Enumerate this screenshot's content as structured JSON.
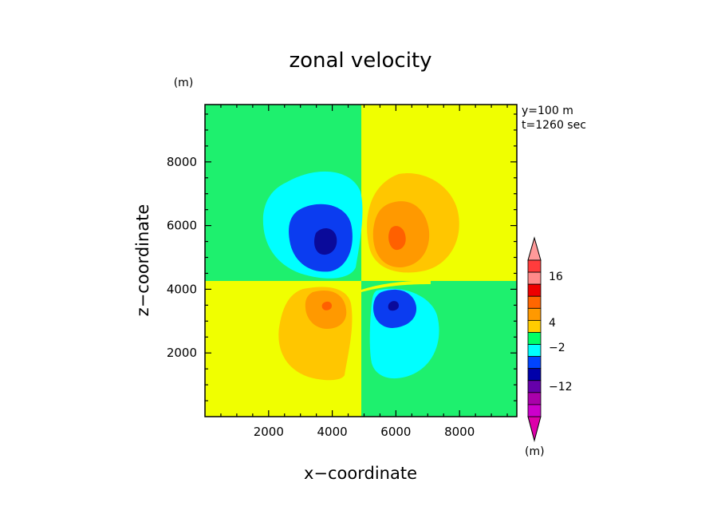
{
  "chart_data": {
    "type": "heatmap",
    "title": "zonal velocity",
    "xlabel": "x−coordinate",
    "ylabel": "z−coordinate",
    "x_unit": "(m)",
    "y_unit": "(m)",
    "xlim": [
      0,
      9800
    ],
    "ylim": [
      0,
      9800
    ],
    "x_ticks": [
      "2000",
      "4000",
      "6000",
      "8000"
    ],
    "x_tick_values": [
      2000,
      4000,
      6000,
      8000
    ],
    "y_ticks": [
      "2000",
      "4000",
      "6000",
      "8000"
    ],
    "y_tick_values": [
      2000,
      4000,
      6000,
      8000
    ],
    "annotations": [
      "y=100 m",
      "t=1260 sec"
    ],
    "background": [
      {
        "region": "upper-left",
        "x": [
          0,
          4900
        ],
        "z": [
          4400,
          9800
        ],
        "level": "-2 to 0",
        "color": "#1ef06e"
      },
      {
        "region": "upper-right",
        "x": [
          4900,
          9800
        ],
        "z": [
          4400,
          9800
        ],
        "level": "0 to 4",
        "color": "#f0ff00"
      },
      {
        "region": "lower-left",
        "x": [
          0,
          4900
        ],
        "z": [
          0,
          4400
        ],
        "level": "0 to 4",
        "color": "#f0ff00"
      },
      {
        "region": "lower-right",
        "x": [
          4900,
          9800
        ],
        "z": [
          0,
          4400
        ],
        "level": "-2 to 0",
        "color": "#1ef06e"
      }
    ],
    "features": [
      {
        "sign": "negative",
        "x": 3800,
        "z": 5700,
        "min_level": "< -12"
      },
      {
        "sign": "positive",
        "x": 6100,
        "z": 5800,
        "max_level": "> 8"
      },
      {
        "sign": "positive",
        "x": 3900,
        "z": 3400,
        "max_level": "> 8"
      },
      {
        "sign": "negative",
        "x": 6100,
        "z": 3300,
        "min_level": "< -8"
      }
    ],
    "colorbar": {
      "labels": [
        "16",
        "4",
        "−2",
        "−12"
      ],
      "colors": [
        "#ff3c3c",
        "#ff8a8a",
        "#ee0000",
        "#ff6600",
        "#ff9900",
        "#ffcc00",
        "#00ff66",
        "#00ffff",
        "#0044ff",
        "#0000aa",
        "#6600aa",
        "#aa00aa",
        "#cc00cc"
      ]
    }
  }
}
